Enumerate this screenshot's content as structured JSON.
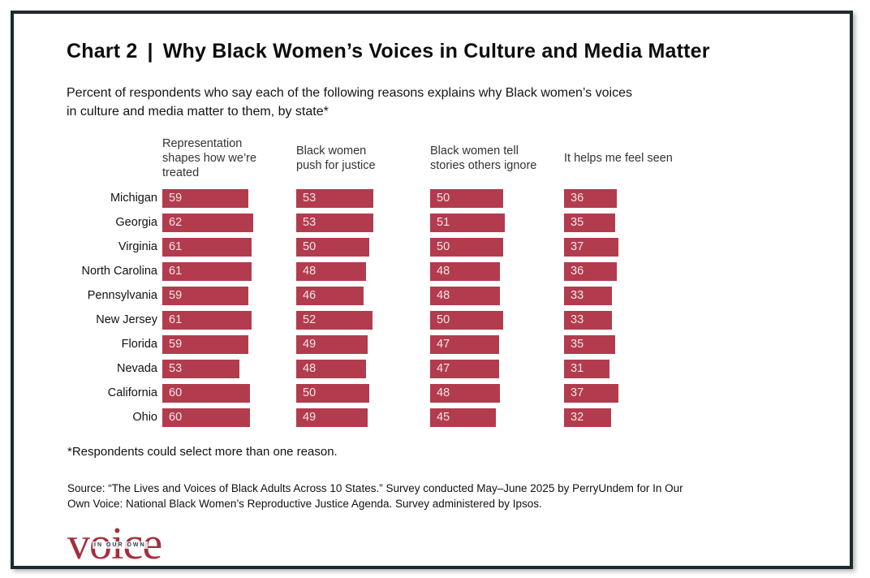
{
  "header": {
    "title_prefix": "Chart 2",
    "title_separator": "|",
    "title_main": "Why Black Women’s Voices in Culture and Media Matter",
    "subtitle_line1": "Percent of respondents who say each of the following reasons explains why Black women’s voices",
    "subtitle_line2": "in culture and media matter to them, by state*"
  },
  "chart_data": {
    "type": "bar",
    "orientation": "horizontal",
    "units": "percent",
    "xlim": [
      0,
      100
    ],
    "grid": false,
    "value_labels_shown": true,
    "bar_color": "#b23c4e",
    "categories": [
      "Michigan",
      "Georgia",
      "Virginia",
      "North Carolina",
      "Pennsylvania",
      "New Jersey",
      "Florida",
      "Nevada",
      "California",
      "Ohio"
    ],
    "series": [
      {
        "name": "Representation shapes how we’re treated",
        "values": [
          59,
          62,
          61,
          61,
          59,
          61,
          59,
          53,
          60,
          60
        ]
      },
      {
        "name": "Black women push for justice",
        "values": [
          53,
          53,
          50,
          48,
          46,
          52,
          49,
          48,
          50,
          49
        ]
      },
      {
        "name": "Black women tell stories others ignore",
        "values": [
          50,
          51,
          50,
          48,
          48,
          50,
          47,
          47,
          48,
          45
        ]
      },
      {
        "name": "It helps me feel seen",
        "values": [
          36,
          35,
          37,
          36,
          33,
          33,
          35,
          31,
          37,
          32
        ]
      }
    ]
  },
  "footnote": "*Respondents could select more than one reason.",
  "source": {
    "line1": "Source: “The Lives and Voices of Black Adults Across 10 States.” Survey conducted May–June 2025 by PerryUndem for In Our",
    "line2": "Own Voice: National Black Women’s Reproductive Justice Agenda. Survey administered by Ipsos."
  },
  "logo": {
    "wordmark": "voice",
    "overlay": "IN OUR OWN"
  }
}
